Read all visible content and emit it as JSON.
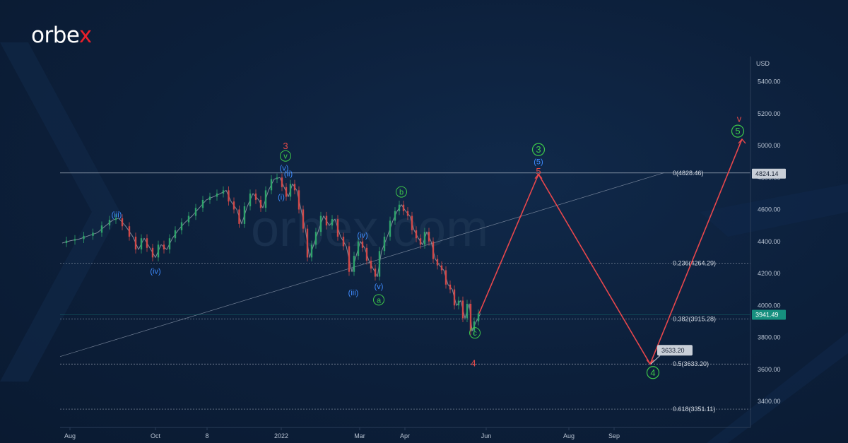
{
  "brand": {
    "logo_text_main": "orbe",
    "logo_text_accent": "x"
  },
  "watermark": "orbex.com",
  "chart_data": {
    "type": "line",
    "currency_label": "USD",
    "y_ticks": [
      "5400.00",
      "5200.00",
      "5000.00",
      "4800.00",
      "4600.00",
      "4400.00",
      "4200.00",
      "4000.00",
      "3800.00",
      "3600.00",
      "3400.00"
    ],
    "x_ticks": [
      "Aug",
      "Oct",
      "8",
      "2022",
      "Mar",
      "Apr",
      "Jun",
      "Aug",
      "Sep"
    ],
    "ylim": [
      3180,
      5520
    ],
    "fib_levels": [
      {
        "label": "0(4828.46)",
        "value": 4828.46
      },
      {
        "label": "0.236(4264.29)",
        "value": 4264.29
      },
      {
        "label": "0.382(3915.28)",
        "value": 3915.28
      },
      {
        "label": "0.5(3633.20)",
        "value": 3633.2
      },
      {
        "label": "0.618(3351.11)",
        "value": 3351.11
      }
    ],
    "price_tags": [
      {
        "text": "4824.14",
        "value": 4824.14,
        "style": "grey"
      },
      {
        "text": "3941.49",
        "value": 3941.49,
        "style": "teal"
      }
    ],
    "target_callout": {
      "text": "3633.20",
      "value": 3633.2
    },
    "trend_line": [
      {
        "x": 85,
        "y": 3680
      },
      {
        "x": 940,
        "y": 4830
      }
    ],
    "price_series": [
      {
        "x": 88,
        "y": 4390
      },
      {
        "x": 100,
        "y": 4405
      },
      {
        "x": 112,
        "y": 4415
      },
      {
        "x": 125,
        "y": 4435
      },
      {
        "x": 138,
        "y": 4455
      },
      {
        "x": 150,
        "y": 4500
      },
      {
        "x": 160,
        "y": 4535
      },
      {
        "x": 168,
        "y": 4545
      },
      {
        "x": 178,
        "y": 4495
      },
      {
        "x": 188,
        "y": 4430
      },
      {
        "x": 196,
        "y": 4350
      },
      {
        "x": 204,
        "y": 4420
      },
      {
        "x": 212,
        "y": 4360
      },
      {
        "x": 220,
        "y": 4300
      },
      {
        "x": 228,
        "y": 4380
      },
      {
        "x": 236,
        "y": 4350
      },
      {
        "x": 244,
        "y": 4420
      },
      {
        "x": 252,
        "y": 4470
      },
      {
        "x": 262,
        "y": 4520
      },
      {
        "x": 272,
        "y": 4560
      },
      {
        "x": 282,
        "y": 4610
      },
      {
        "x": 292,
        "y": 4660
      },
      {
        "x": 302,
        "y": 4680
      },
      {
        "x": 312,
        "y": 4700
      },
      {
        "x": 320,
        "y": 4720
      },
      {
        "x": 327,
        "y": 4650
      },
      {
        "x": 335,
        "y": 4600
      },
      {
        "x": 342,
        "y": 4510
      },
      {
        "x": 350,
        "y": 4620
      },
      {
        "x": 358,
        "y": 4700
      },
      {
        "x": 366,
        "y": 4660
      },
      {
        "x": 372,
        "y": 4610
      },
      {
        "x": 380,
        "y": 4720
      },
      {
        "x": 388,
        "y": 4790
      },
      {
        "x": 396,
        "y": 4800
      },
      {
        "x": 402,
        "y": 4740
      },
      {
        "x": 408,
        "y": 4680
      },
      {
        "x": 414,
        "y": 4760
      },
      {
        "x": 420,
        "y": 4720
      },
      {
        "x": 426,
        "y": 4600
      },
      {
        "x": 432,
        "y": 4480
      },
      {
        "x": 438,
        "y": 4300
      },
      {
        "x": 444,
        "y": 4380
      },
      {
        "x": 450,
        "y": 4460
      },
      {
        "x": 458,
        "y": 4560
      },
      {
        "x": 466,
        "y": 4500
      },
      {
        "x": 474,
        "y": 4540
      },
      {
        "x": 482,
        "y": 4430
      },
      {
        "x": 490,
        "y": 4370
      },
      {
        "x": 498,
        "y": 4210
      },
      {
        "x": 504,
        "y": 4310
      },
      {
        "x": 510,
        "y": 4400
      },
      {
        "x": 516,
        "y": 4360
      },
      {
        "x": 522,
        "y": 4280
      },
      {
        "x": 528,
        "y": 4230
      },
      {
        "x": 534,
        "y": 4180
      },
      {
        "x": 540,
        "y": 4340
      },
      {
        "x": 548,
        "y": 4430
      },
      {
        "x": 556,
        "y": 4530
      },
      {
        "x": 562,
        "y": 4590
      },
      {
        "x": 568,
        "y": 4630
      },
      {
        "x": 574,
        "y": 4590
      },
      {
        "x": 580,
        "y": 4560
      },
      {
        "x": 586,
        "y": 4470
      },
      {
        "x": 592,
        "y": 4420
      },
      {
        "x": 598,
        "y": 4380
      },
      {
        "x": 604,
        "y": 4460
      },
      {
        "x": 610,
        "y": 4400
      },
      {
        "x": 616,
        "y": 4290
      },
      {
        "x": 622,
        "y": 4250
      },
      {
        "x": 628,
        "y": 4220
      },
      {
        "x": 634,
        "y": 4130
      },
      {
        "x": 640,
        "y": 4100
      },
      {
        "x": 646,
        "y": 4000
      },
      {
        "x": 652,
        "y": 4030
      },
      {
        "x": 658,
        "y": 3920
      },
      {
        "x": 664,
        "y": 4010
      },
      {
        "x": 668,
        "y": 3840
      },
      {
        "x": 674,
        "y": 3900
      },
      {
        "x": 680,
        "y": 3950
      }
    ],
    "projection_path": [
      {
        "x": 678,
        "y": 3950
      },
      {
        "x": 762,
        "y": 4820
      },
      {
        "x": 920,
        "y": 3633.2
      },
      {
        "x": 1050,
        "y": 5040
      }
    ],
    "wave_labels": [
      {
        "text": "(iii)",
        "x": 165,
        "y": 4570,
        "style": "blue"
      },
      {
        "text": "(iv)",
        "x": 220,
        "y": 4215,
        "style": "blue"
      },
      {
        "text": "3",
        "x": 404,
        "y": 5000,
        "style": "red"
      },
      {
        "text": "v",
        "x": 404,
        "y": 4935,
        "style": "green-circle"
      },
      {
        "text": "(v)",
        "x": 402,
        "y": 4860,
        "style": "blue"
      },
      {
        "text": "(ii)",
        "x": 408,
        "y": 4825,
        "style": "blue"
      },
      {
        "text": "(i)",
        "x": 398,
        "y": 4680,
        "style": "blue"
      },
      {
        "text": "(iv)",
        "x": 513,
        "y": 4440,
        "style": "blue"
      },
      {
        "text": "(iii)",
        "x": 500,
        "y": 4080,
        "style": "blue"
      },
      {
        "text": "(v)",
        "x": 536,
        "y": 4120,
        "style": "blue"
      },
      {
        "text": "a",
        "x": 536,
        "y": 4035,
        "style": "green-circle"
      },
      {
        "text": "b",
        "x": 568,
        "y": 4710,
        "style": "green-circle"
      },
      {
        "text": "c",
        "x": 672,
        "y": 3828,
        "style": "green-circle"
      },
      {
        "text": "4",
        "x": 670,
        "y": 3640,
        "style": "red"
      },
      {
        "text": "3",
        "x": 762,
        "y": 4975,
        "style": "green-circle-large"
      },
      {
        "text": "(5)",
        "x": 762,
        "y": 4905,
        "style": "blue-large"
      },
      {
        "text": "5",
        "x": 762,
        "y": 4840,
        "style": "red"
      },
      {
        "text": "4",
        "x": 924,
        "y": 3580,
        "style": "green-circle-large"
      },
      {
        "text": "v",
        "x": 1046,
        "y": 5170,
        "style": "red"
      },
      {
        "text": "5",
        "x": 1044,
        "y": 5090,
        "style": "green-circle-large"
      }
    ]
  }
}
